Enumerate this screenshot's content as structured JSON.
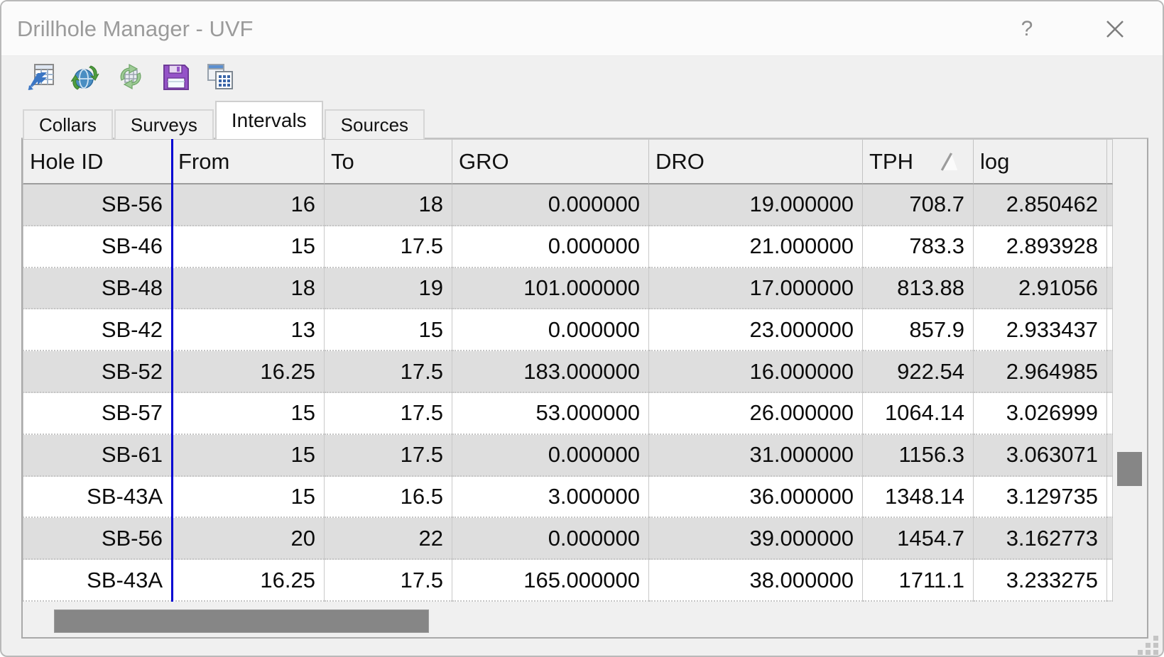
{
  "window": {
    "title": "Drillhole Manager - UVF",
    "help_label": "?"
  },
  "toolbar": {
    "buttons": [
      {
        "name": "send-to-table",
        "icon": "table-arrow-icon"
      },
      {
        "name": "sync-web",
        "icon": "globe-sync-icon"
      },
      {
        "name": "refresh-table",
        "icon": "refresh-arrows-icon"
      },
      {
        "name": "save",
        "icon": "floppy-disk-icon"
      },
      {
        "name": "copy-grid",
        "icon": "copy-grid-icon"
      }
    ]
  },
  "tabs": [
    {
      "label": "Collars",
      "active": false
    },
    {
      "label": "Surveys",
      "active": false
    },
    {
      "label": "Intervals",
      "active": true
    },
    {
      "label": "Sources",
      "active": false
    }
  ],
  "table": {
    "columns": [
      "Hole ID",
      "From",
      "To",
      "GRO",
      "DRO",
      "TPH",
      "log"
    ],
    "sort": {
      "column": "TPH",
      "direction": "ascending"
    },
    "rows": [
      [
        "SB-56",
        "16",
        "18",
        "0.000000",
        "19.000000",
        "708.7",
        "2.850462"
      ],
      [
        "SB-46",
        "15",
        "17.5",
        "0.000000",
        "21.000000",
        "783.3",
        "2.893928"
      ],
      [
        "SB-48",
        "18",
        "19",
        "101.000000",
        "17.000000",
        "813.88",
        "2.91056"
      ],
      [
        "SB-42",
        "13",
        "15",
        "0.000000",
        "23.000000",
        "857.9",
        "2.933437"
      ],
      [
        "SB-52",
        "16.25",
        "17.5",
        "183.000000",
        "16.000000",
        "922.54",
        "2.964985"
      ],
      [
        "SB-57",
        "15",
        "17.5",
        "53.000000",
        "26.000000",
        "1064.14",
        "3.026999"
      ],
      [
        "SB-61",
        "15",
        "17.5",
        "0.000000",
        "31.000000",
        "1156.3",
        "3.063071"
      ],
      [
        "SB-43A",
        "15",
        "16.5",
        "3.000000",
        "36.000000",
        "1348.14",
        "3.129735"
      ],
      [
        "SB-56",
        "20",
        "22",
        "0.000000",
        "39.000000",
        "1454.7",
        "3.162773"
      ],
      [
        "SB-43A",
        "16.25",
        "17.5",
        "165.000000",
        "38.000000",
        "1711.1",
        "3.233275"
      ]
    ]
  },
  "colors": {
    "freeze_line": "#0000d2",
    "row_alternate": "#dedede",
    "scroll_thumb": "#868686",
    "title_text": "#9b9b9b"
  }
}
